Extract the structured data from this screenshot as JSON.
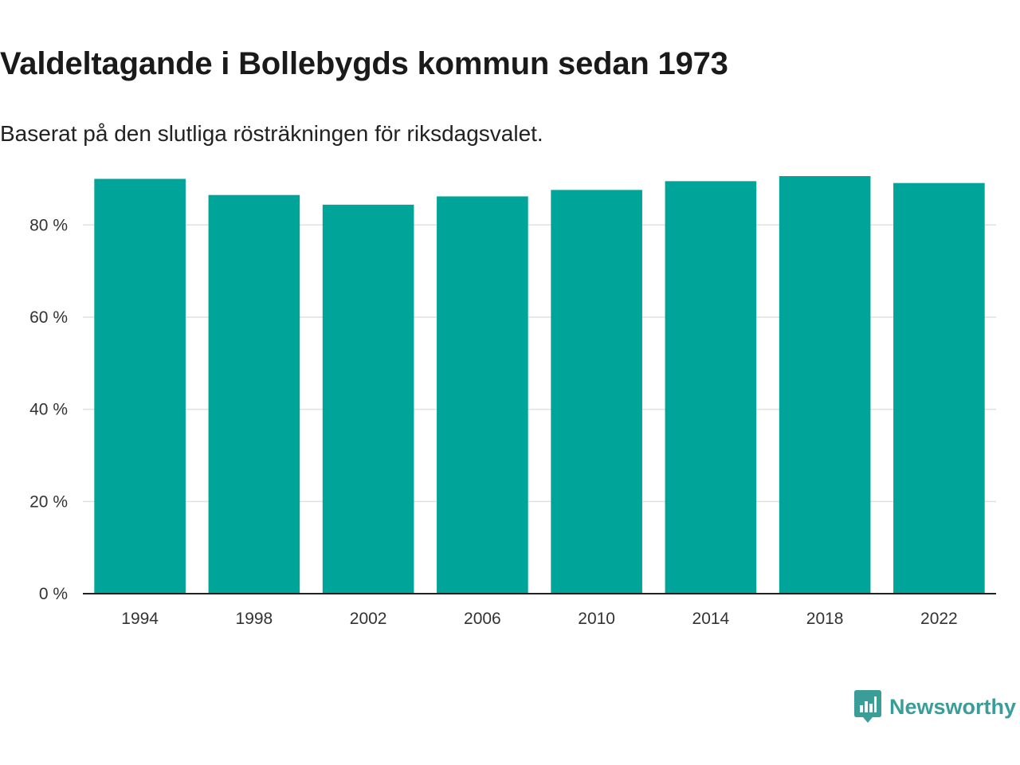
{
  "title": "Valdeltagande i Bollebygds kommun sedan 1973",
  "subtitle": "Baserat på den slutliga rösträkningen för riksdagsvalet.",
  "brand": {
    "name": "Newsworthy",
    "color": "#3a9d98",
    "logo_icon": "bar-chart-speech-bubble-icon"
  },
  "colors": {
    "bar": "#00a499",
    "grid": "#e0e0e0",
    "axis": "#222222"
  },
  "chart_data": {
    "type": "bar",
    "title": "Valdeltagande i Bollebygds kommun sedan 1973",
    "subtitle": "Baserat på den slutliga rösträkningen för riksdagsvalet.",
    "categories": [
      "1994",
      "1998",
      "2002",
      "2006",
      "2010",
      "2014",
      "2018",
      "2022"
    ],
    "values": [
      90.0,
      86.5,
      84.4,
      86.2,
      87.6,
      89.5,
      90.6,
      89.1
    ],
    "ylim": [
      0,
      90.6
    ],
    "yticks": [
      0,
      20,
      40,
      60,
      80
    ],
    "ytick_labels": [
      "0 %",
      "20 %",
      "40 %",
      "60 %",
      "80 %"
    ],
    "xlabel": "",
    "ylabel": "",
    "grid": true,
    "legend": "none"
  }
}
